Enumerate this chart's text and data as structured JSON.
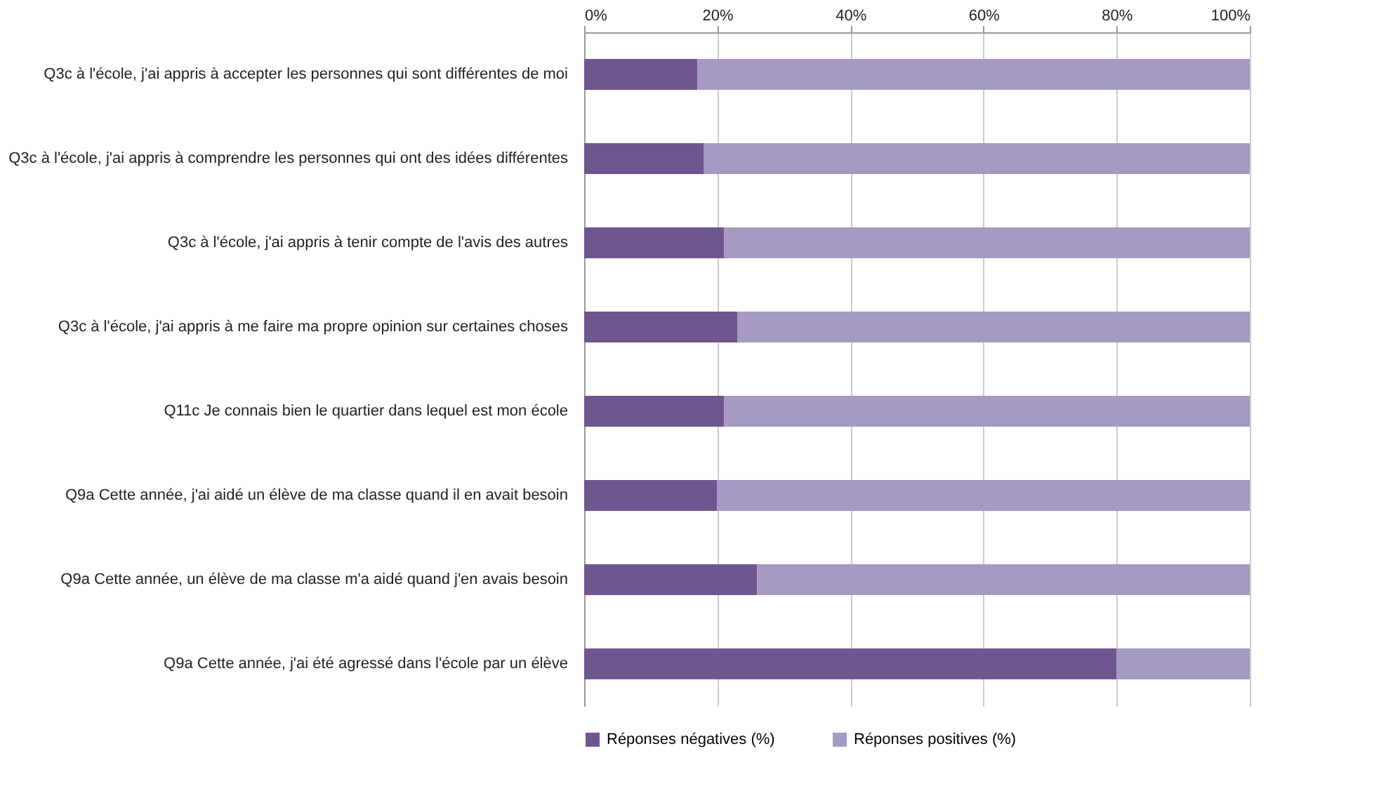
{
  "chart_data": {
    "type": "bar",
    "orientation": "horizontal",
    "stacked": true,
    "categories": [
      "Q3c à l'école, j'ai appris à accepter les personnes qui sont différentes de moi",
      "Q3c à l'école, j'ai appris à comprendre les personnes qui ont des idées différentes",
      "Q3c à l'école, j'ai appris à tenir compte de l'avis des autres",
      "Q3c à l'école, j'ai appris à me faire ma propre opinion sur certaines choses",
      "Q11c Je connais bien le quartier dans lequel est mon école",
      "Q9a Cette année, j'ai aidé un élève de ma classe quand il en avait besoin",
      "Q9a Cette année, un élève de ma classe m'a aidé quand j'en avais besoin",
      "Q9a Cette année, j'ai été agressé dans l'école par un élève"
    ],
    "series": [
      {
        "name": "Réponses négatives (%)",
        "color": "#6f568f",
        "values": [
          17,
          18,
          21,
          23,
          21,
          20,
          26,
          80
        ]
      },
      {
        "name": "Réponses positives (%)",
        "color": "#a699c2",
        "values": [
          83,
          82,
          79,
          77,
          79,
          80,
          74,
          20
        ]
      }
    ],
    "xlim": [
      0,
      100
    ],
    "xticks": [
      {
        "value": 0,
        "label": "0%"
      },
      {
        "value": 20,
        "label": "20%"
      },
      {
        "value": 40,
        "label": "40%"
      },
      {
        "value": 60,
        "label": "60%"
      },
      {
        "value": 80,
        "label": "80%"
      },
      {
        "value": 100,
        "label": "100%"
      }
    ],
    "grid": "x",
    "legend": "bottom"
  }
}
